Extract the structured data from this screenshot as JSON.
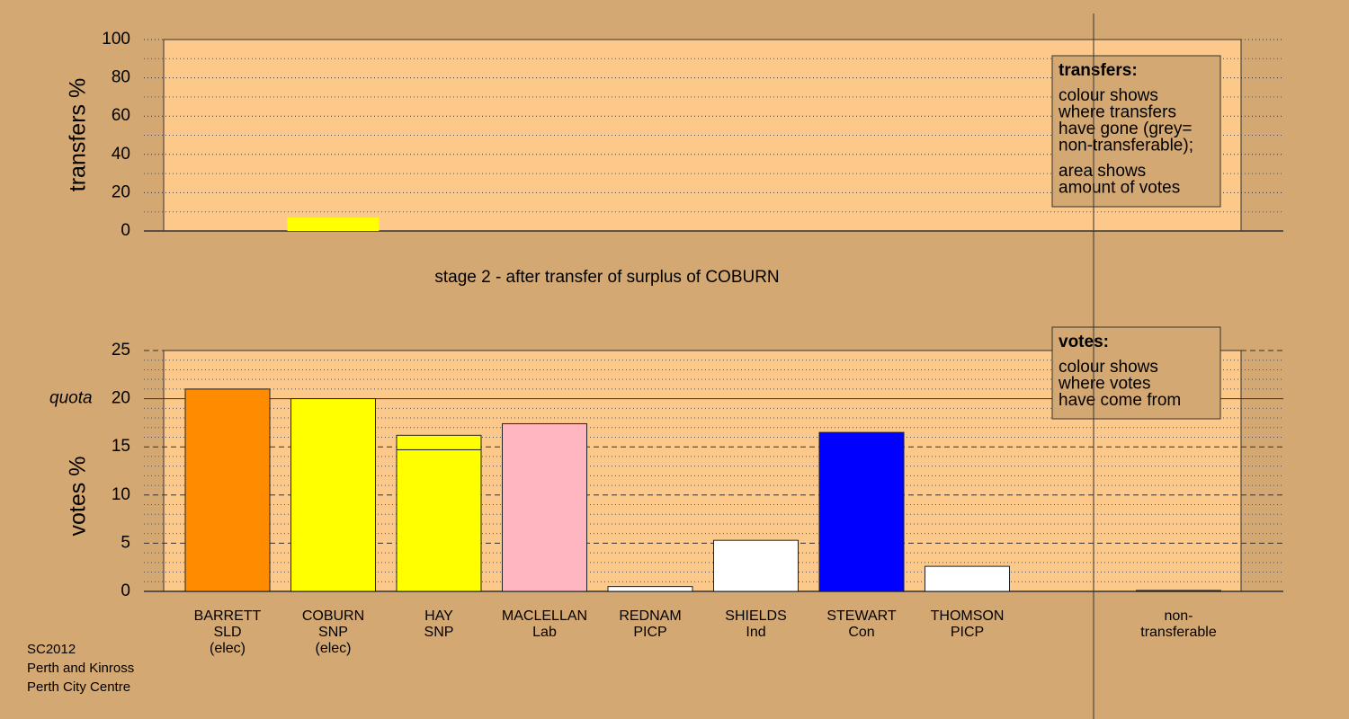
{
  "chart_data": [
    {
      "type": "bar",
      "ylabel": "transfers %",
      "ylim": [
        0,
        100
      ],
      "yticks": [
        0,
        20,
        40,
        60,
        80,
        100
      ],
      "grid": true,
      "values": [
        null,
        7,
        null,
        null,
        null,
        null,
        null,
        null,
        null,
        null
      ],
      "color": "#ffff00",
      "info": {
        "title": "transfers:",
        "paragraphs": [
          [
            "colour shows",
            "where transfers",
            "have gone (grey=",
            "non-transferable);"
          ],
          [
            "area shows",
            "amount of votes"
          ]
        ]
      }
    },
    {
      "type": "stacked-bar",
      "ylabel": "votes %",
      "ylim": [
        0,
        25
      ],
      "yticks": [
        0,
        5,
        10,
        15,
        20,
        25
      ],
      "grid": true,
      "quota": 20,
      "quota_label": "quota",
      "categories": [
        [
          "BARRETT",
          "SLD",
          "(elec)"
        ],
        [
          "COBURN",
          "SNP",
          "(elec)"
        ],
        [
          "HAY",
          "SNP"
        ],
        [
          "MACLELLAN",
          "Lab"
        ],
        [
          "REDNAM",
          "PICP"
        ],
        [
          "SHIELDS",
          "Ind"
        ],
        [
          "STEWART",
          "Con"
        ],
        [
          "THOMSON",
          "PICP"
        ],
        null,
        [
          "non-",
          "transferable"
        ]
      ],
      "series": [
        {
          "colors": [
            "#ff8c00",
            "#ffff00",
            "#ffff00",
            "#ffb6c1",
            "#ffffff",
            "#ffffff",
            "#0000ff",
            "#ffffff",
            null,
            "#999999"
          ],
          "values": [
            21.0,
            20.0,
            14.7,
            17.4,
            0.5,
            5.3,
            16.5,
            2.6,
            null,
            0.1
          ]
        },
        {
          "color": "#ffff00",
          "values": [
            null,
            null,
            1.5,
            null,
            null,
            null,
            null,
            null,
            null,
            null
          ]
        }
      ],
      "info": {
        "title": "votes:",
        "paragraphs": [
          [
            "colour shows",
            "where votes",
            "have come from"
          ]
        ]
      }
    }
  ],
  "caption": "stage 2 - after transfer of surplus of COBURN",
  "footer": [
    "SC2012",
    "Perth and Kinross",
    "Perth City Centre"
  ]
}
